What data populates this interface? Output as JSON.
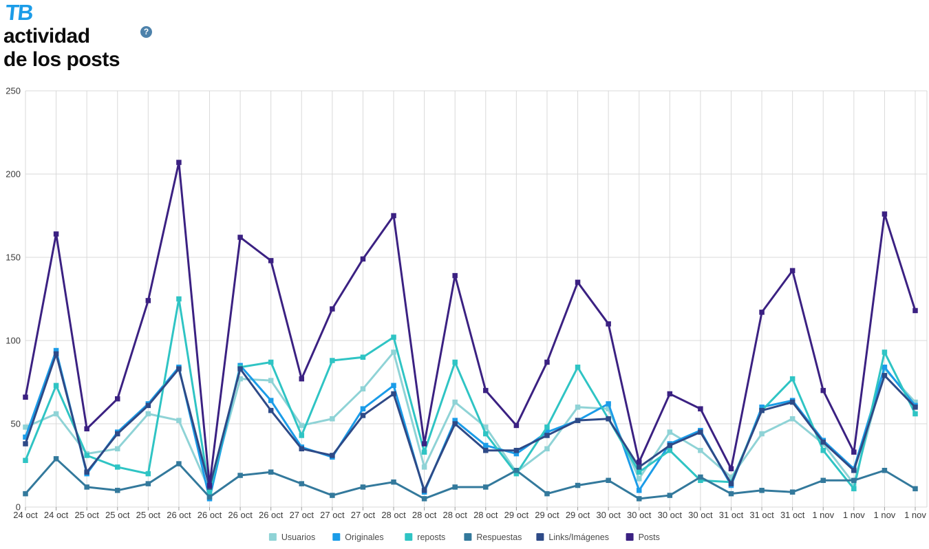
{
  "header": {
    "logo_text": "TB",
    "title_line1": "actividad",
    "title_line2": "de los posts",
    "help_icon": "?"
  },
  "ui_colors": {
    "logo_blue": "#1b9ce8",
    "help_icon_bg": "#4d82ab",
    "grid_line": "#d9d9d9",
    "axis_text": "#3a3a3a"
  },
  "chart_data": {
    "type": "line",
    "title": "actividad de los posts",
    "grid": true,
    "marker": "square",
    "legend_position": "bottom",
    "ylim": [
      0,
      250
    ],
    "yticks": [
      0,
      50,
      100,
      150,
      200,
      250
    ],
    "categories": [
      "24 oct",
      "24 oct",
      "25 oct",
      "25 oct",
      "25 oct",
      "26 oct",
      "26 oct",
      "26 oct",
      "26 oct",
      "27 oct",
      "27 oct",
      "27 oct",
      "28 oct",
      "28 oct",
      "28 oct",
      "28 oct",
      "29 oct",
      "29 oct",
      "29 oct",
      "30 oct",
      "30 oct",
      "30 oct",
      "30 oct",
      "31 oct",
      "31 oct",
      "31 oct",
      "1 nov",
      "1 nov",
      "1 nov",
      "1 nov"
    ],
    "series": [
      {
        "name": "Usuarios",
        "color": "#8fd3d6",
        "values": [
          48,
          56,
          32,
          35,
          56,
          52,
          10,
          77,
          76,
          49,
          53,
          71,
          93,
          24,
          63,
          48,
          21,
          35,
          60,
          59,
          17,
          45,
          34,
          18,
          44,
          53,
          38,
          14,
          83,
          63
        ]
      },
      {
        "name": "Originales",
        "color": "#1b9ce8",
        "values": [
          42,
          94,
          20,
          45,
          62,
          84,
          5,
          85,
          64,
          36,
          30,
          59,
          73,
          9,
          52,
          37,
          32,
          45,
          52,
          62,
          10,
          38,
          46,
          13,
          60,
          64,
          40,
          23,
          84,
          61
        ]
      },
      {
        "name": "reposts",
        "color": "#2fc4c4",
        "values": [
          28,
          73,
          31,
          24,
          20,
          125,
          9,
          84,
          87,
          43,
          88,
          90,
          102,
          33,
          87,
          44,
          20,
          48,
          84,
          53,
          21,
          34,
          16,
          15,
          58,
          77,
          34,
          11,
          93,
          56
        ]
      },
      {
        "name": "Respuestas",
        "color": "#33799c",
        "values": [
          8,
          29,
          12,
          10,
          14,
          26,
          6,
          19,
          21,
          14,
          7,
          12,
          15,
          5,
          12,
          12,
          22,
          8,
          13,
          16,
          5,
          7,
          18,
          8,
          10,
          9,
          16,
          16,
          22,
          11
        ]
      },
      {
        "name": "Links/Imágenes",
        "color": "#2e4a87",
        "values": [
          38,
          92,
          21,
          44,
          61,
          83,
          12,
          83,
          58,
          35,
          31,
          55,
          68,
          10,
          50,
          34,
          34,
          43,
          52,
          53,
          24,
          37,
          45,
          14,
          58,
          63,
          39,
          22,
          79,
          60
        ]
      },
      {
        "name": "Posts",
        "color": "#3b2182",
        "values": [
          66,
          164,
          47,
          65,
          124,
          207,
          13,
          162,
          148,
          77,
          119,
          149,
          175,
          38,
          139,
          70,
          49,
          87,
          135,
          110,
          27,
          68,
          59,
          23,
          117,
          142,
          70,
          33,
          176,
          118
        ]
      }
    ]
  }
}
